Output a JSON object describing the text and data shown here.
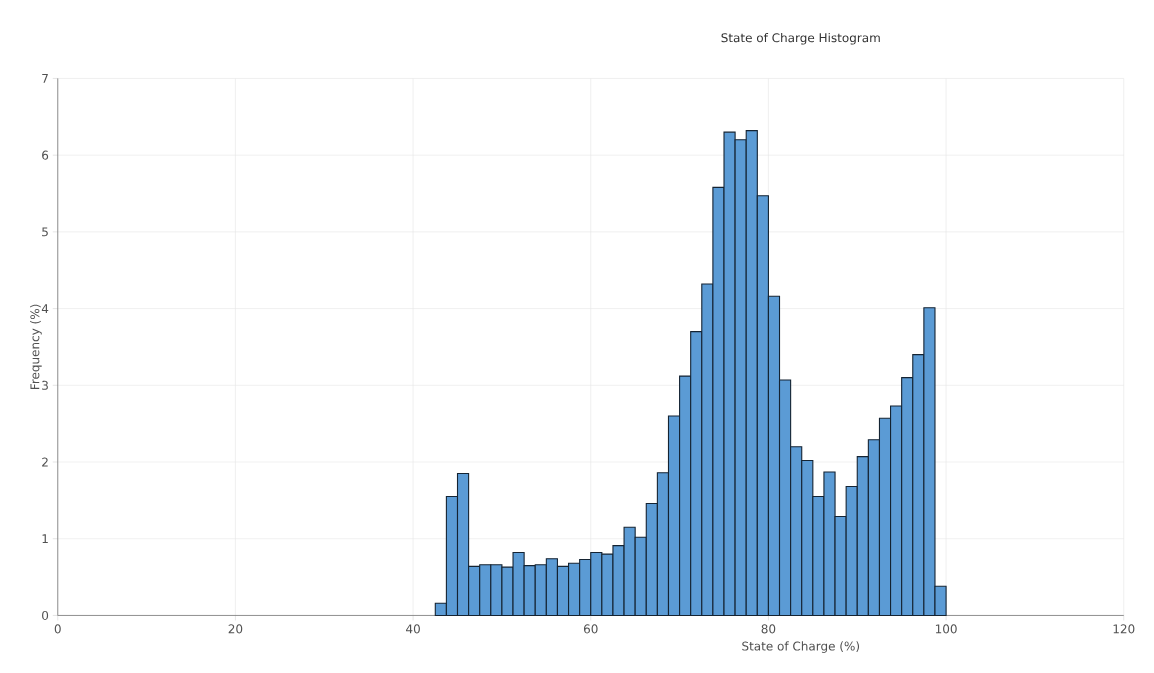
{
  "chart_data": {
    "type": "histogram",
    "title": "State of Charge Histogram",
    "xlabel": "State of Charge (%)",
    "ylabel": "Frequency (%)",
    "bins": [
      42.5,
      43.75,
      45,
      46.25,
      47.5,
      48.75,
      50,
      51.25,
      52.5,
      53.75,
      55,
      56.25,
      57.5,
      58.75,
      60,
      61.25,
      62.5,
      63.75,
      65,
      66.25,
      67.5,
      68.75,
      70,
      71.25,
      72.5,
      73.75,
      75,
      76.25,
      77.5,
      78.75,
      80,
      81.25,
      82.5,
      83.75,
      85,
      86.25,
      87.5,
      88.75,
      90,
      91.25,
      92.5,
      93.75,
      95,
      96.25,
      97.5,
      98.75,
      100
    ],
    "values": [
      0.16,
      1.55,
      1.85,
      0.64,
      0.66,
      0.66,
      0.63,
      0.82,
      0.65,
      0.66,
      0.74,
      0.64,
      0.68,
      0.73,
      0.82,
      0.8,
      0.91,
      1.15,
      1.02,
      1.46,
      1.86,
      2.6,
      3.12,
      3.7,
      4.32,
      5.58,
      6.3,
      6.2,
      6.32,
      5.47,
      4.16,
      3.07,
      2.2,
      2.02,
      1.55,
      1.87,
      1.29,
      1.68,
      2.07,
      2.29,
      2.57,
      2.73,
      3.1,
      3.4,
      4.01,
      0.38
    ],
    "color": "#5b9bd5",
    "xlim": [
      0,
      120
    ],
    "ylim": [
      0,
      7
    ],
    "xticks": [
      0,
      20,
      40,
      60,
      80,
      100,
      120
    ],
    "yticks": [
      0,
      1,
      2,
      3,
      4,
      5,
      6,
      7
    ],
    "grid": true
  }
}
